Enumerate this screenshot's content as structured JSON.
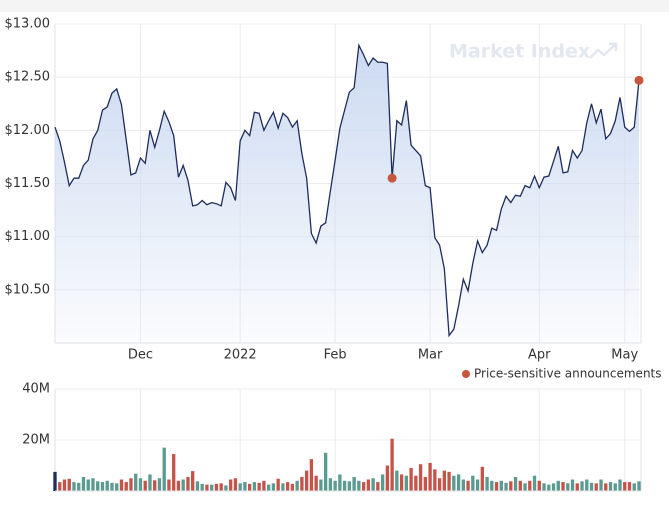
{
  "chart_data": [
    {
      "type": "line",
      "watermark": "Market Index",
      "color": "#1f2d5c",
      "fill_color": "#c9d8f0",
      "grid": true,
      "ylim": [
        10,
        13
      ],
      "yticks": [
        {
          "value": 13,
          "label": "$13.00"
        },
        {
          "value": 12.5,
          "label": "$12.50"
        },
        {
          "value": 12,
          "label": "$12.00"
        },
        {
          "value": 11.5,
          "label": "$11.50"
        },
        {
          "value": 11,
          "label": "$11.00"
        },
        {
          "value": 10.5,
          "label": "$10.50"
        }
      ],
      "categories": [
        null,
        null,
        null,
        null,
        null,
        null,
        null,
        null,
        null,
        null,
        null,
        null,
        null,
        null,
        null,
        null,
        null,
        null,
        "Dec",
        null,
        null,
        null,
        null,
        null,
        null,
        null,
        null,
        null,
        null,
        null,
        null,
        null,
        null,
        null,
        null,
        null,
        null,
        null,
        null,
        "2022",
        null,
        null,
        null,
        null,
        null,
        null,
        null,
        null,
        null,
        null,
        null,
        null,
        null,
        null,
        null,
        null,
        null,
        null,
        null,
        "Feb",
        null,
        null,
        null,
        null,
        null,
        null,
        null,
        null,
        null,
        null,
        null,
        null,
        null,
        null,
        null,
        null,
        null,
        null,
        null,
        "Mar",
        null,
        null,
        null,
        null,
        null,
        null,
        null,
        null,
        null,
        null,
        null,
        null,
        null,
        null,
        null,
        null,
        null,
        null,
        null,
        null,
        null,
        null,
        "Apr",
        null,
        null,
        null,
        null,
        null,
        null,
        null,
        null,
        null,
        null,
        null,
        null,
        null,
        null,
        null,
        null,
        null,
        "May",
        null,
        null,
        null
      ],
      "values": [
        12.03,
        11.9,
        11.7,
        11.48,
        11.55,
        11.55,
        11.67,
        11.72,
        11.92,
        12.0,
        12.19,
        12.22,
        12.35,
        12.39,
        12.24,
        11.91,
        11.58,
        11.6,
        11.74,
        11.69,
        12.0,
        11.84,
        12.0,
        12.18,
        12.08,
        11.95,
        11.56,
        11.67,
        11.53,
        11.29,
        11.3,
        11.34,
        11.3,
        11.32,
        11.31,
        11.29,
        11.51,
        11.46,
        11.34,
        11.9,
        12.0,
        11.95,
        12.17,
        12.16,
        12.0,
        12.09,
        12.17,
        12.02,
        12.16,
        12.12,
        12.03,
        12.09,
        11.78,
        11.55,
        11.03,
        10.94,
        11.1,
        11.13,
        11.43,
        11.72,
        12.02,
        12.19,
        12.36,
        12.4,
        12.8,
        12.71,
        12.61,
        12.68,
        12.64,
        12.64,
        12.63,
        11.55,
        12.09,
        12.05,
        12.28,
        11.86,
        11.81,
        11.76,
        11.48,
        11.46,
        10.99,
        10.92,
        10.7,
        10.07,
        10.13,
        10.35,
        10.6,
        10.49,
        10.75,
        10.96,
        10.85,
        10.92,
        11.08,
        11.06,
        11.26,
        11.38,
        11.32,
        11.39,
        11.38,
        11.48,
        11.46,
        11.57,
        11.46,
        11.56,
        11.57,
        11.71,
        11.85,
        11.6,
        11.61,
        11.81,
        11.74,
        11.81,
        12.07,
        12.25,
        12.07,
        12.2,
        11.92,
        11.97,
        12.09,
        12.31,
        12.03,
        11.99,
        12.03,
        12.47
      ],
      "markers": {
        "name": "Price-sensitive announcements",
        "color": "#c8553d",
        "values": [
          null,
          null,
          null,
          null,
          null,
          null,
          null,
          null,
          null,
          null,
          null,
          null,
          null,
          null,
          null,
          null,
          null,
          null,
          null,
          null,
          null,
          null,
          null,
          null,
          null,
          null,
          null,
          null,
          null,
          null,
          null,
          null,
          null,
          null,
          null,
          null,
          null,
          null,
          null,
          null,
          null,
          null,
          null,
          null,
          null,
          null,
          null,
          null,
          null,
          null,
          null,
          null,
          null,
          null,
          null,
          null,
          null,
          null,
          null,
          null,
          null,
          null,
          null,
          null,
          null,
          null,
          null,
          null,
          null,
          null,
          null,
          11.55,
          null,
          null,
          null,
          null,
          null,
          null,
          null,
          null,
          null,
          null,
          null,
          null,
          null,
          null,
          null,
          null,
          null,
          null,
          null,
          null,
          null,
          null,
          null,
          null,
          null,
          null,
          null,
          null,
          null,
          null,
          null,
          null,
          null,
          null,
          null,
          null,
          null,
          null,
          null,
          null,
          null,
          null,
          null,
          null,
          null,
          null,
          null,
          null,
          null,
          null,
          null,
          12.47
        ]
      }
    },
    {
      "type": "bar",
      "grid": true,
      "up_color": "#5b9a90",
      "down_color": "#c4534a",
      "first_color": "#1f2d5c",
      "ylim": [
        0,
        40000000
      ],
      "yticks": [
        {
          "value": 40000000,
          "label": "40M"
        },
        {
          "value": 20000000,
          "label": "20M"
        }
      ],
      "values": [
        7500000,
        3500000,
        4500000,
        4800000,
        3500000,
        3200000,
        5500000,
        4500000,
        5000000,
        3800000,
        3500000,
        4000000,
        3200000,
        3000000,
        4500000,
        3500000,
        5000000,
        6800000,
        5000000,
        4000000,
        6500000,
        4200000,
        5000000,
        17000000,
        4500000,
        14500000,
        4000000,
        4500000,
        5500000,
        7800000,
        3800000,
        2800000,
        2500000,
        2500000,
        2800000,
        3000000,
        2200000,
        4500000,
        5000000,
        3000000,
        3500000,
        2800000,
        3500000,
        3200000,
        4000000,
        2500000,
        3000000,
        4800000,
        3000000,
        3500000,
        2800000,
        4000000,
        5500000,
        8000000,
        12500000,
        6000000,
        4500000,
        15000000,
        5000000,
        4000000,
        6500000,
        4000000,
        3800000,
        5500000,
        4000000,
        3500000,
        4500000,
        5000000,
        3500000,
        6500000,
        10000000,
        20500000,
        8000000,
        6500000,
        6000000,
        9000000,
        6000000,
        10500000,
        5500000,
        11000000,
        8500000,
        5000000,
        8000000,
        7500000,
        6000000,
        6500000,
        4500000,
        4000000,
        6000000,
        4500000,
        9500000,
        5500000,
        4000000,
        3500000,
        4000000,
        3200000,
        3800000,
        5500000,
        4000000,
        3000000,
        4000000,
        6000000,
        4000000,
        3000000,
        2500000,
        3000000,
        4000000,
        3500000,
        3000000,
        4500000,
        3000000,
        3800000,
        4500000,
        3200000,
        3000000,
        4500000,
        3000000,
        3500000,
        3000000,
        4500000,
        3500000,
        3500000,
        3000000,
        3800000
      ]
    }
  ]
}
